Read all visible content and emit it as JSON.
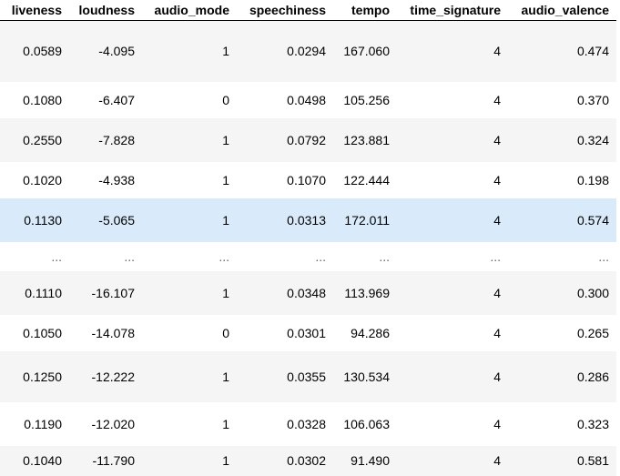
{
  "table": {
    "columns": [
      "liveness",
      "loudness",
      "audio_mode",
      "speechiness",
      "tempo",
      "time_signature",
      "audio_valence"
    ],
    "rows": [
      [
        "0.0589",
        "-4.095",
        "1",
        "0.0294",
        "167.060",
        "4",
        "0.474"
      ],
      [
        "0.1080",
        "-6.407",
        "0",
        "0.0498",
        "105.256",
        "4",
        "0.370"
      ],
      [
        "0.2550",
        "-7.828",
        "1",
        "0.0792",
        "123.881",
        "4",
        "0.324"
      ],
      [
        "0.1020",
        "-4.938",
        "1",
        "0.1070",
        "122.444",
        "4",
        "0.198"
      ],
      [
        "0.1130",
        "-5.065",
        "1",
        "0.0313",
        "172.011",
        "4",
        "0.574"
      ],
      [
        "...",
        "...",
        "...",
        "...",
        "...",
        "...",
        "..."
      ],
      [
        "0.1110",
        "-16.107",
        "1",
        "0.0348",
        "113.969",
        "4",
        "0.300"
      ],
      [
        "0.1050",
        "-14.078",
        "0",
        "0.0301",
        "94.286",
        "4",
        "0.265"
      ],
      [
        "0.1250",
        "-12.222",
        "1",
        "0.0355",
        "130.534",
        "4",
        "0.286"
      ],
      [
        "0.1190",
        "-12.020",
        "1",
        "0.0328",
        "106.063",
        "4",
        "0.323"
      ],
      [
        "0.1040",
        "-11.790",
        "1",
        "0.0302",
        "91.490",
        "4",
        "0.581"
      ]
    ],
    "hovered_row_index": 4
  }
}
